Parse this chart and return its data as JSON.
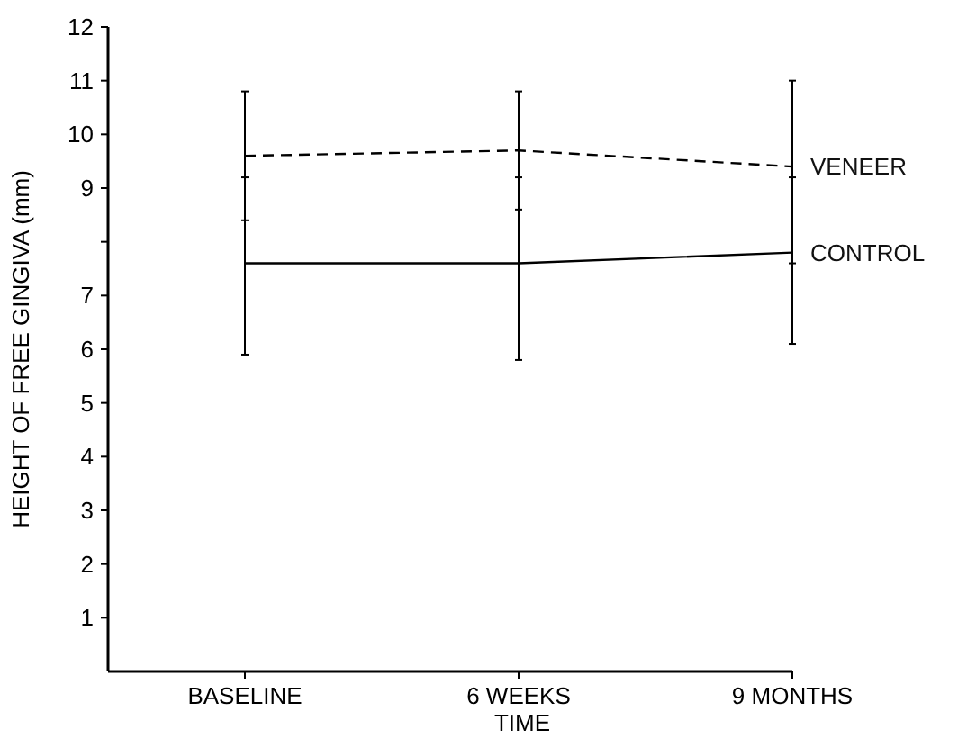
{
  "chart_data": {
    "type": "line",
    "xlabel": "TIME",
    "ylabel": "HEIGHT OF FREE GINGIVA (mm)",
    "categories": [
      "BASELINE",
      "6 WEEKS",
      "9 MONTHS"
    ],
    "ylim": [
      0,
      12
    ],
    "yticks": [
      1,
      2,
      3,
      4,
      5,
      6,
      7,
      {
        "value": 8,
        "label": null
      },
      9,
      10,
      11,
      12
    ],
    "series": [
      {
        "name": "VENEER",
        "color": "#000000",
        "line_style": "dashed",
        "values": [
          9.6,
          9.7,
          9.4
        ],
        "errors": [
          [
            8.4,
            10.8
          ],
          [
            8.6,
            10.8
          ],
          [
            7.6,
            11.0
          ]
        ]
      },
      {
        "name": "CONTROL",
        "color": "#000000",
        "line_style": "solid",
        "values": [
          7.6,
          7.6,
          7.8
        ],
        "errors": [
          [
            5.9,
            9.2
          ],
          [
            5.8,
            9.2
          ],
          [
            6.1,
            9.2
          ]
        ]
      }
    ],
    "marker": "none",
    "grid": false
  }
}
